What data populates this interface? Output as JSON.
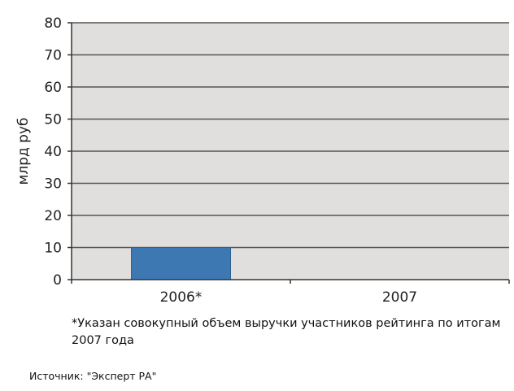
{
  "chart_data": {
    "type": "bar",
    "categories": [
      "2006*",
      "2007"
    ],
    "values": [
      10,
      0
    ],
    "ylabel": "млрд руб",
    "ylim": [
      0,
      80
    ],
    "yticks": [
      0,
      10,
      20,
      30,
      40,
      50,
      60,
      70,
      80
    ],
    "grid": true,
    "legend": "none",
    "colors": {
      "bar": "#3d78b3",
      "plot_background": "#e1dfdd",
      "grid": "#555555",
      "axis": "#333333"
    }
  },
  "footnote": "*Указан совокупный объем выручки участников рейтинга по итогам 2007 года",
  "source": "Источник: \"Эксперт РА\""
}
